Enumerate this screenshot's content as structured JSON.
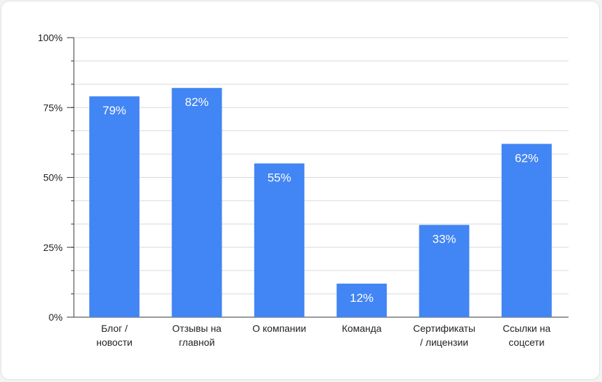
{
  "chart_data": {
    "type": "bar",
    "categories": [
      [
        "Блог /",
        "новости"
      ],
      [
        "Отзывы на",
        "главной"
      ],
      [
        "О компании"
      ],
      [
        "Команда"
      ],
      [
        "Сертификаты",
        "/ лицензии"
      ],
      [
        "Ссылки на",
        "соцсети"
      ]
    ],
    "values": [
      79,
      82,
      55,
      12,
      33,
      62
    ],
    "data_labels": [
      "79%",
      "82%",
      "55%",
      "12%",
      "33%",
      "62%"
    ],
    "ylim": [
      0,
      100
    ],
    "yticks": [
      0,
      25,
      50,
      75,
      100
    ],
    "ytick_labels": [
      "0%",
      "25%",
      "50%",
      "75%",
      "100%"
    ],
    "minor_tick_step": 8.333,
    "grid": true,
    "colors": {
      "bar": "#4285f4",
      "grid": "#d9d9d9",
      "axis": "#333333"
    }
  }
}
